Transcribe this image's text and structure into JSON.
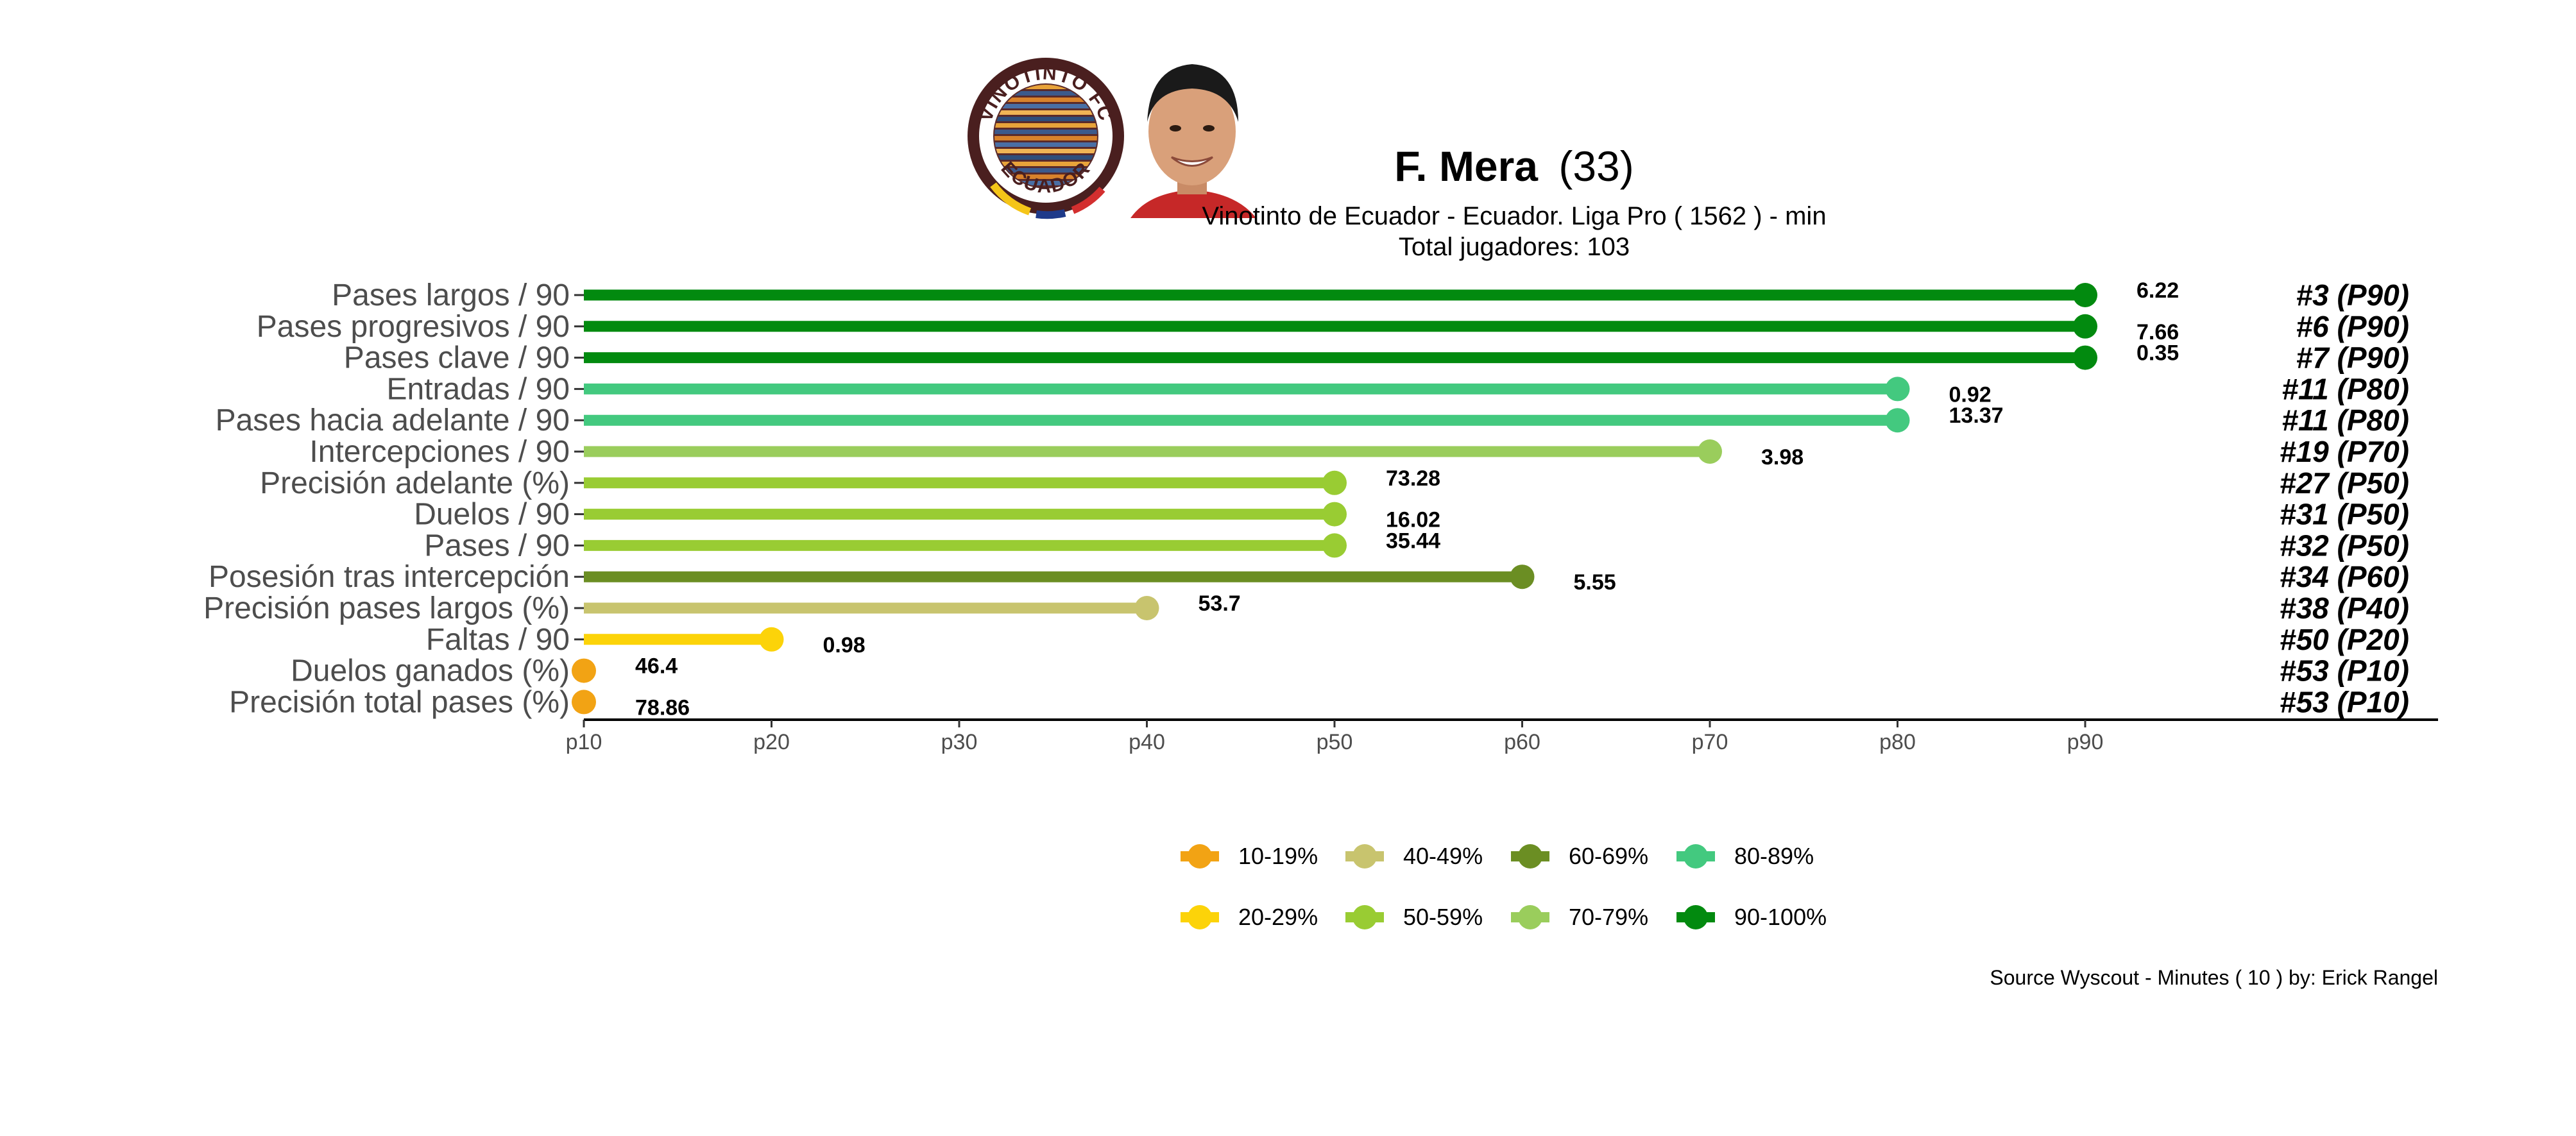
{
  "header": {
    "player_name": "F. Mera",
    "age": "(33)",
    "subtitle": "Vinotinto de Ecuador  -  Ecuador. Liga Pro  ( 1562 ) - min",
    "total_players": "Total jugadores:  103",
    "logo_text_top": "VINOTINTO FC",
    "logo_text_bottom": "ECUADOR"
  },
  "source_note": "Source Wyscout - Minutes ( 10 ) by: Erick Rangel",
  "colors": {
    "b10": "#F2A314",
    "b20": "#FCD309",
    "b40": "#C8C46E",
    "b50": "#99CC33",
    "b60": "#6B8E23",
    "b70": "#9ACD5C",
    "b80": "#43C97F",
    "b90": "#028A0F",
    "axis": "#000000",
    "label_text": "#4D4D4D"
  },
  "chart_data": {
    "type": "lollipop",
    "x_ticks": [
      "p10",
      "p20",
      "p30",
      "p40",
      "p50",
      "p60",
      "p70",
      "p80",
      "p90"
    ],
    "xlim": [
      10,
      100
    ],
    "grid": false,
    "legend_position": "bottom",
    "rows": [
      {
        "label": "Pases largos / 90",
        "percentile": 90,
        "value": "6.22",
        "rank": "#3 (P90)",
        "band": "b90"
      },
      {
        "label": "Pases progresivos / 90",
        "percentile": 90,
        "value": "7.66",
        "rank": "#6 (P90)",
        "band": "b90"
      },
      {
        "label": "Pases clave / 90",
        "percentile": 90,
        "value": "0.35",
        "rank": "#7 (P90)",
        "band": "b90"
      },
      {
        "label": "Entradas / 90",
        "percentile": 80,
        "value": "0.92",
        "rank": "#11 (P80)",
        "band": "b80"
      },
      {
        "label": "Pases hacia adelante / 90",
        "percentile": 80,
        "value": "13.37",
        "rank": "#11 (P80)",
        "band": "b80"
      },
      {
        "label": "Intercepciones / 90",
        "percentile": 70,
        "value": "3.98",
        "rank": "#19 (P70)",
        "band": "b70"
      },
      {
        "label": "Precisión adelante (%)",
        "percentile": 50,
        "value": "73.28",
        "rank": "#27 (P50)",
        "band": "b50"
      },
      {
        "label": "Duelos / 90",
        "percentile": 50,
        "value": "16.02",
        "rank": "#31 (P50)",
        "band": "b50"
      },
      {
        "label": "Pases / 90",
        "percentile": 50,
        "value": "35.44",
        "rank": "#32 (P50)",
        "band": "b50"
      },
      {
        "label": "Posesión tras intercepción",
        "percentile": 60,
        "value": "5.55",
        "rank": "#34 (P60)",
        "band": "b60"
      },
      {
        "label": "Precisión pases largos (%)",
        "percentile": 40,
        "value": "53.7",
        "rank": "#38 (P40)",
        "band": "b40"
      },
      {
        "label": "Faltas / 90",
        "percentile": 20,
        "value": "0.98",
        "rank": "#50 (P20)",
        "band": "b20"
      },
      {
        "label": "Duelos ganados (%)",
        "percentile": 10,
        "value": "46.4",
        "rank": "#53 (P10)",
        "band": "b10"
      },
      {
        "label": "Precisión total pases (%)",
        "percentile": 10,
        "value": "78.86",
        "rank": "#53 (P10)",
        "band": "b10"
      }
    ],
    "legend": [
      {
        "label": "10-19%",
        "band": "b10"
      },
      {
        "label": "20-29%",
        "band": "b20"
      },
      {
        "label": "40-49%",
        "band": "b40"
      },
      {
        "label": "50-59%",
        "band": "b50"
      },
      {
        "label": "60-69%",
        "band": "b60"
      },
      {
        "label": "70-79%",
        "band": "b70"
      },
      {
        "label": "80-89%",
        "band": "b80"
      },
      {
        "label": "90-100%",
        "band": "b90"
      }
    ]
  }
}
